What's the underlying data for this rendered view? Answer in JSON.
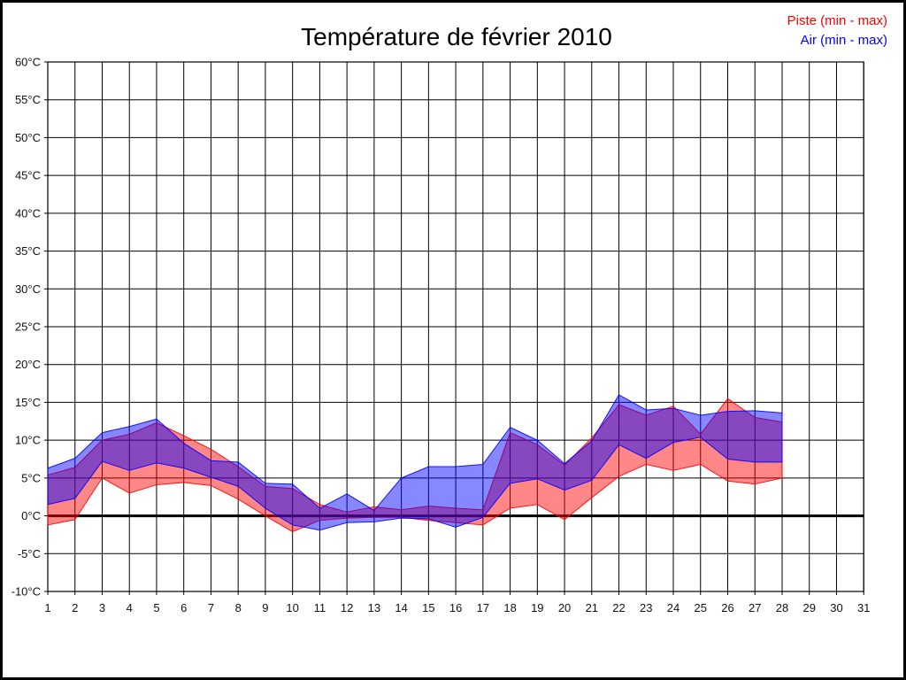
{
  "title": "Température de février 2010",
  "legend": {
    "piste": {
      "label": "Piste (min - max)",
      "color": "#ff0000"
    },
    "air": {
      "label": "Air (min - max)",
      "color": "#0000ff"
    }
  },
  "axes": {
    "y_unit": "°C",
    "y_tick_labels": [
      "60°C",
      "55°C",
      "50°C",
      "45°C",
      "40°C",
      "35°C",
      "30°C",
      "25°C",
      "20°C",
      "15°C",
      "10°C",
      "5°C",
      "0°C",
      "-5°C",
      "-10°C"
    ],
    "x_tick_labels": [
      "1",
      "2",
      "3",
      "4",
      "5",
      "6",
      "7",
      "8",
      "9",
      "10",
      "11",
      "12",
      "13",
      "14",
      "15",
      "16",
      "17",
      "18",
      "19",
      "20",
      "21",
      "22",
      "23",
      "24",
      "25",
      "26",
      "27",
      "28",
      "29",
      "30",
      "31"
    ]
  },
  "colors": {
    "grid": "#000000",
    "zero_line": "#000000",
    "background": "#ffffff",
    "piste_fill": "rgba(255,0,0,0.47)",
    "piste_stroke": "rgba(255,0,0,0.9)",
    "air_fill": "rgba(0,0,255,0.47)",
    "air_stroke": "rgba(0,0,255,0.9)"
  },
  "chart_data": {
    "type": "area",
    "title": "Température de février 2010",
    "xlabel": "",
    "ylabel": "°C",
    "xlim": [
      1,
      31
    ],
    "ylim": [
      -10,
      60
    ],
    "y_tick_step": 5,
    "grid": true,
    "zero_line_y": 0,
    "legend_position": "top-right",
    "x": [
      1,
      2,
      3,
      4,
      5,
      6,
      7,
      8,
      9,
      10,
      11,
      12,
      13,
      14,
      15,
      16,
      17,
      18,
      19,
      20,
      21,
      22,
      23,
      24,
      25,
      26,
      27,
      28
    ],
    "series": [
      {
        "name": "Piste (min - max)",
        "color": "#ff0000",
        "min": [
          -1.2,
          -0.5,
          5.0,
          3.0,
          4.1,
          4.4,
          4.0,
          2.2,
          0.0,
          -2.1,
          -0.6,
          -0.3,
          -0.2,
          -0.2,
          -0.6,
          -0.9,
          -1.2,
          1.0,
          1.5,
          -0.5,
          2.4,
          5.2,
          6.8,
          6.0,
          6.8,
          4.6,
          4.2,
          5.0
        ],
        "max": [
          5.4,
          6.4,
          10.0,
          10.8,
          12.3,
          10.6,
          8.8,
          6.5,
          3.9,
          3.6,
          1.5,
          0.5,
          1.2,
          0.8,
          1.3,
          1.0,
          0.8,
          11.0,
          9.4,
          6.7,
          10.3,
          14.7,
          13.3,
          14.5,
          10.8,
          15.5,
          13.0,
          12.4
        ]
      },
      {
        "name": "Air (min - max)",
        "color": "#0000ff",
        "min": [
          1.5,
          2.3,
          7.2,
          6.0,
          7.0,
          6.3,
          5.1,
          3.9,
          1.0,
          -1.2,
          -1.9,
          -0.9,
          -0.8,
          -0.3,
          -0.4,
          -1.5,
          -0.2,
          4.3,
          4.9,
          3.4,
          4.7,
          9.4,
          7.6,
          9.7,
          10.4,
          7.5,
          7.1,
          7.1
        ],
        "max": [
          6.3,
          7.6,
          11.0,
          11.8,
          12.8,
          9.6,
          7.3,
          7.1,
          4.3,
          4.2,
          1.0,
          2.9,
          0.7,
          5.0,
          6.5,
          6.5,
          6.8,
          11.7,
          10.0,
          6.9,
          9.9,
          16.0,
          14.0,
          14.2,
          13.3,
          13.8,
          13.9,
          13.6
        ]
      }
    ]
  }
}
